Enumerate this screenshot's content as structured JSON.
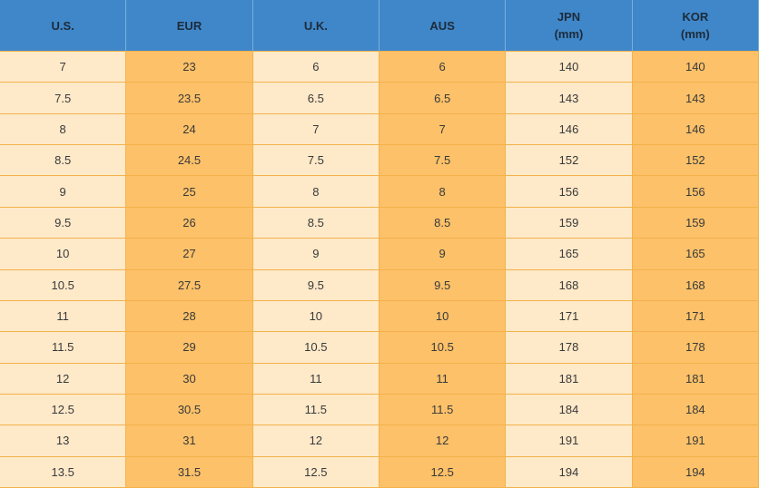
{
  "table": {
    "header": [
      [
        "U.S."
      ],
      [
        "EUR"
      ],
      [
        "U.K."
      ],
      [
        "AUS"
      ],
      [
        "JPN",
        "(mm)"
      ],
      [
        "KOR",
        "(mm)"
      ]
    ],
    "rows": [
      [
        7,
        23,
        6,
        6,
        140,
        140
      ],
      [
        7.5,
        23.5,
        6.5,
        6.5,
        143,
        143
      ],
      [
        8,
        24,
        7,
        7,
        146,
        146
      ],
      [
        8.5,
        24.5,
        7.5,
        7.5,
        152,
        152
      ],
      [
        9,
        25,
        8,
        8,
        156,
        156
      ],
      [
        9.5,
        26,
        8.5,
        8.5,
        159,
        159
      ],
      [
        10,
        27,
        9,
        9,
        165,
        165
      ],
      [
        10.5,
        27.5,
        9.5,
        9.5,
        168,
        168
      ],
      [
        11,
        28,
        10,
        10,
        171,
        171
      ],
      [
        11.5,
        29,
        10.5,
        10.5,
        178,
        178
      ],
      [
        12,
        30,
        11,
        11,
        181,
        181
      ],
      [
        12.5,
        30.5,
        11.5,
        11.5,
        184,
        184
      ],
      [
        13,
        31,
        12,
        12,
        191,
        191
      ],
      [
        13.5,
        31.5,
        12.5,
        12.5,
        194,
        194
      ]
    ]
  }
}
